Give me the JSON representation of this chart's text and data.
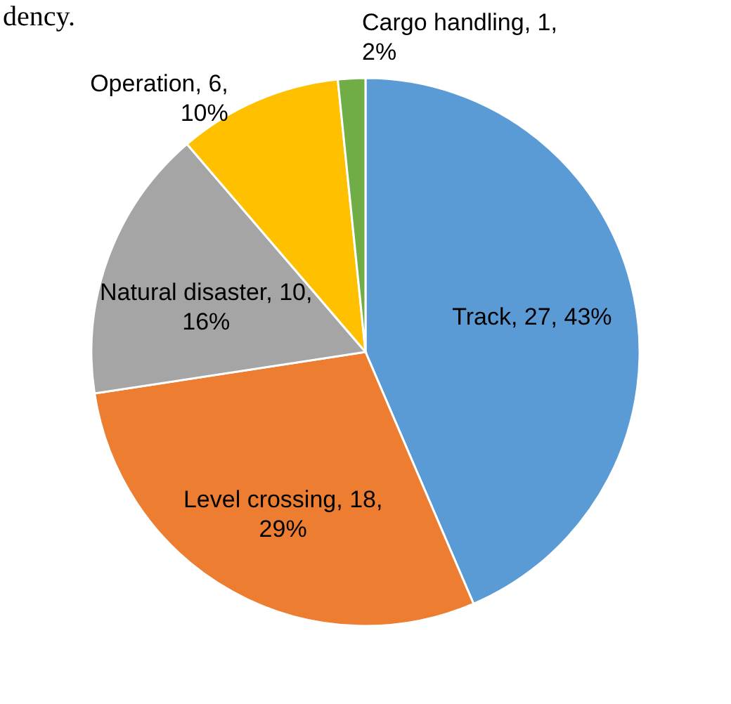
{
  "chart_data": {
    "type": "pie",
    "categories": [
      "Track",
      "Level crossing",
      "Natural disaster",
      "Operation",
      "Cargo handling"
    ],
    "values": [
      27,
      18,
      10,
      6,
      1
    ],
    "value_labels": [
      "27, 43%",
      "18, 29%",
      "10, 16%",
      "6, 10%",
      "1, 2%"
    ],
    "colors": [
      "#5b9bd5",
      "#ed7d31",
      "#a5a5a5",
      "#ffc000",
      "#70ad47"
    ],
    "annotations": [
      "dency."
    ]
  }
}
